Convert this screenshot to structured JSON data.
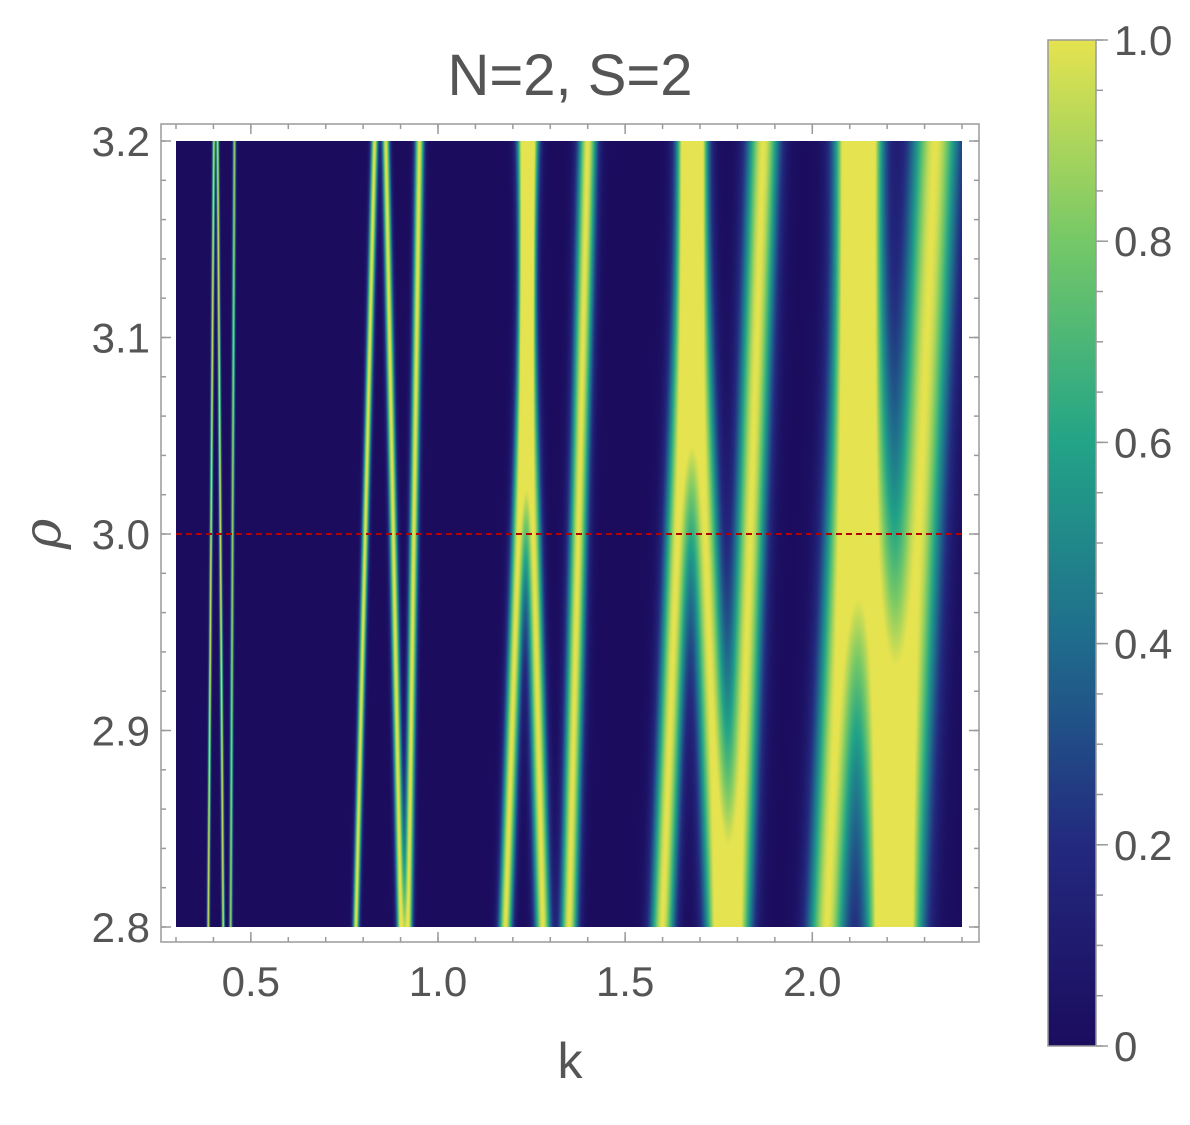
{
  "chart_data": {
    "type": "heatmap",
    "title": "N=2, S=2",
    "xlabel": "k",
    "ylabel": "ρ",
    "xlim": [
      0.3,
      2.4
    ],
    "ylim": [
      2.8,
      3.2
    ],
    "x_ticks": [
      "0.5",
      "1.0",
      "1.5",
      "2.0"
    ],
    "x_tick_values": [
      0.5,
      1.0,
      1.5,
      2.0
    ],
    "y_ticks": [
      "2.8",
      "2.9",
      "3.0",
      "3.1",
      "3.2"
    ],
    "y_tick_values": [
      2.8,
      2.9,
      3.0,
      3.1,
      3.2
    ],
    "colorbar": {
      "range": [
        0,
        1
      ],
      "ticks": [
        "0",
        "0.2",
        "0.4",
        "0.6",
        "0.8",
        "1.0"
      ],
      "tick_values": [
        0,
        0.2,
        0.4,
        0.6,
        0.8,
        1.0
      ],
      "colormap": [
        "#1b0c5e",
        "#23297f",
        "#1f6b8c",
        "#22a487",
        "#75c867",
        "#e5e34f"
      ]
    },
    "reference_line": {
      "y": 3.0,
      "color": "#b30000",
      "style": "dashed"
    },
    "bands": [
      {
        "k_at_2_8": 0.385,
        "k_at_3_2": 0.4,
        "peak": 1.0
      },
      {
        "k_at_2_8": 0.425,
        "k_at_3_2": 0.41,
        "peak": 1.0
      },
      {
        "k_at_2_8": 0.445,
        "k_at_3_2": 0.455,
        "peak": 0.9
      },
      {
        "k_at_2_8": 0.78,
        "k_at_3_2": 0.83,
        "peak": 1.0
      },
      {
        "k_at_2_8": 0.9,
        "k_at_3_2": 0.86,
        "peak": 1.0
      },
      {
        "k_at_2_8": 0.92,
        "k_at_3_2": 0.95,
        "peak": 1.0
      },
      {
        "k_at_2_8": 1.18,
        "k_at_3_2": 1.25,
        "peak": 1.0
      },
      {
        "k_at_2_8": 1.28,
        "k_at_3_2": 1.23,
        "peak": 1.0
      },
      {
        "k_at_2_8": 1.35,
        "k_at_3_2": 1.4,
        "peak": 1.0
      },
      {
        "k_at_2_8": 1.6,
        "k_at_3_2": 1.68,
        "peak": 1.0
      },
      {
        "k_at_2_8": 1.75,
        "k_at_3_2": 1.68,
        "peak": 1.0
      },
      {
        "k_at_2_8": 1.8,
        "k_at_3_2": 1.87,
        "peak": 1.0
      },
      {
        "k_at_2_8": 2.04,
        "k_at_3_2": 2.13,
        "peak": 1.0
      },
      {
        "k_at_2_8": 2.2,
        "k_at_3_2": 2.12,
        "peak": 1.0
      },
      {
        "k_at_2_8": 2.24,
        "k_at_3_2": 2.33,
        "peak": 1.0
      }
    ]
  }
}
